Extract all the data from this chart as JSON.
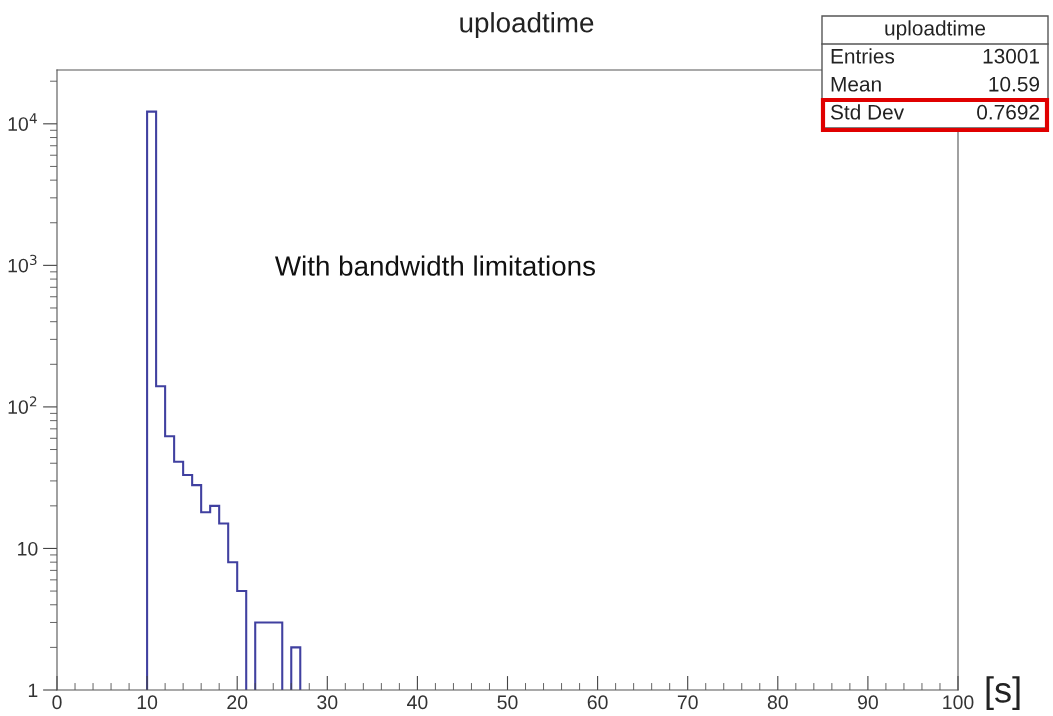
{
  "chart_data": {
    "type": "histogram",
    "title": "uploadtime",
    "xlabel": "[s]",
    "bins": [
      10,
      11,
      12,
      13,
      14,
      15,
      16,
      17,
      18,
      19,
      20,
      21,
      22,
      23,
      24,
      25,
      26,
      27
    ],
    "values": [
      12200,
      140,
      62,
      41,
      33,
      28,
      18,
      20,
      15,
      8,
      5,
      null,
      3,
      3,
      3,
      null,
      2
    ],
    "color": "#4040a0",
    "log": true,
    "xlim": [
      0,
      100
    ],
    "xticks": [
      0,
      10,
      20,
      30,
      40,
      50,
      60,
      70,
      80,
      90,
      100
    ],
    "ylim": [
      1,
      24000
    ],
    "yticks": [
      1,
      10,
      {
        "value": 100,
        "label": "10$^{2}$"
      },
      {
        "value": 1000,
        "label": "10$^{3}$"
      },
      {
        "value": 10000,
        "label": "10$^{4}$"
      }
    ],
    "grid": false,
    "annotations": [
      "With bandwidth limitations",
      "uploadtime",
      "Entries",
      "13001",
      "Mean",
      "10.59",
      "Std Dev",
      "0.7692"
    ]
  }
}
